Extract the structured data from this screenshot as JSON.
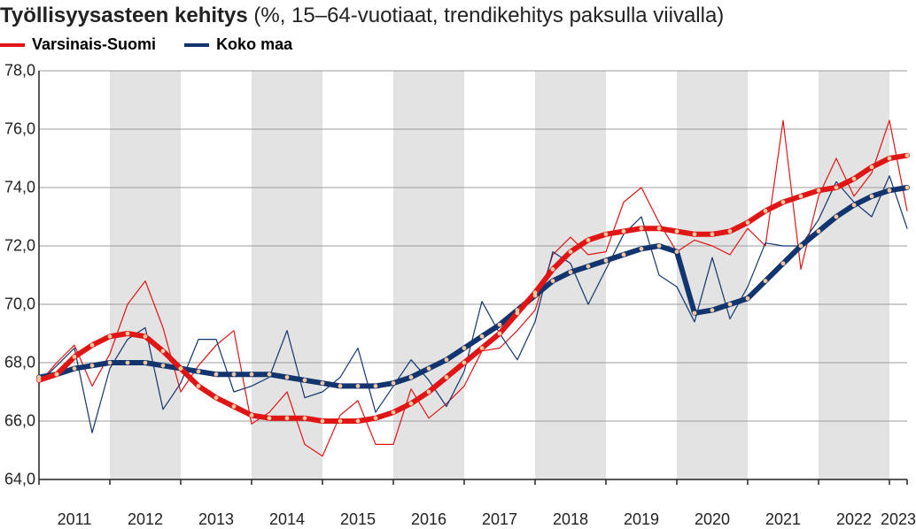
{
  "title": {
    "bold": "Työllisyysasteen kehitys",
    "rest": " (%, 15–64-vuotiaat, trendikehitys paksulla viivalla)",
    "fontsize_bold": 24,
    "fontsize_rest": 24,
    "color": "#222222"
  },
  "legend": {
    "items": [
      {
        "label": "Varsinais-Suomi",
        "color": "#e01515"
      },
      {
        "label": "Koko maa",
        "color": "#12356f"
      }
    ],
    "fontsize": 18
  },
  "chart": {
    "type": "line",
    "background_color": "#ffffff",
    "alt_band_color": "#e3e3e3",
    "grid_color": "#9b9b9b",
    "axis_color": "#222222",
    "ylim": [
      64.0,
      78.0
    ],
    "ytick_step": 2.0,
    "yticks": [
      "64,0",
      "66,0",
      "68,0",
      "70,0",
      "72,0",
      "74,0",
      "76,0",
      "78,0"
    ],
    "x_range_quarters": [
      0,
      49
    ],
    "x_year_labels": [
      "2011",
      "2012",
      "2013",
      "2014",
      "2015",
      "2016",
      "2017",
      "2018",
      "2019",
      "2020",
      "2021",
      "2022",
      "2023"
    ],
    "year_boundaries_q": [
      0,
      4,
      8,
      12,
      16,
      20,
      24,
      28,
      32,
      36,
      40,
      44,
      48,
      49
    ],
    "thin_line_width": 1.2,
    "thick_line_width": 6,
    "thick_dot_radius": 2.4,
    "thick_dot_color": "#f6c7a0",
    "series": {
      "vs_raw": {
        "color": "#e01515",
        "width": 1.2,
        "y": [
          67.3,
          68.0,
          68.6,
          67.2,
          68.3,
          70.0,
          70.8,
          69.2,
          67.0,
          67.9,
          68.6,
          69.1,
          65.9,
          66.3,
          67.0,
          65.2,
          64.8,
          66.2,
          66.7,
          65.2,
          65.2,
          67.1,
          66.1,
          66.6,
          67.2,
          68.4,
          68.5,
          69.1,
          69.8,
          71.7,
          72.3,
          71.7,
          71.8,
          73.5,
          74.0,
          72.8,
          71.8,
          72.2,
          72.0,
          71.7,
          72.6,
          72.0,
          76.3,
          71.2,
          73.7,
          75.0,
          73.7,
          74.5,
          76.3,
          73.2
        ]
      },
      "km_raw": {
        "color": "#12356f",
        "width": 1.2,
        "y": [
          67.3,
          67.9,
          68.5,
          65.6,
          67.8,
          68.8,
          69.2,
          66.4,
          67.3,
          68.8,
          68.8,
          67.0,
          67.2,
          67.5,
          69.1,
          66.8,
          67.0,
          67.5,
          68.5,
          66.3,
          67.2,
          68.1,
          67.4,
          66.5,
          67.7,
          70.1,
          69.0,
          68.1,
          69.4,
          71.8,
          71.4,
          70.0,
          71.2,
          72.4,
          73.0,
          71.0,
          70.6,
          69.4,
          71.6,
          69.5,
          70.6,
          72.1,
          72.0,
          72.0,
          72.9,
          74.2,
          73.5,
          73.0,
          74.4,
          72.6
        ]
      },
      "vs_trend": {
        "color": "#e01515",
        "width": 6,
        "dots": true,
        "y": [
          67.4,
          67.6,
          68.2,
          68.6,
          68.9,
          69.0,
          68.9,
          68.4,
          67.8,
          67.2,
          66.8,
          66.5,
          66.2,
          66.1,
          66.1,
          66.1,
          66.0,
          66.0,
          66.0,
          66.1,
          66.3,
          66.6,
          67.0,
          67.5,
          68.0,
          68.5,
          69.0,
          69.7,
          70.4,
          71.2,
          71.8,
          72.2,
          72.4,
          72.5,
          72.6,
          72.6,
          72.5,
          72.4,
          72.4,
          72.5,
          72.8,
          73.2,
          73.5,
          73.7,
          73.9,
          74.0,
          74.3,
          74.7,
          75.0,
          75.1
        ]
      },
      "km_trend": {
        "color": "#12356f",
        "width": 6,
        "dots": true,
        "y": [
          67.5,
          67.6,
          67.8,
          67.9,
          68.0,
          68.0,
          68.0,
          67.9,
          67.8,
          67.7,
          67.6,
          67.6,
          67.6,
          67.6,
          67.5,
          67.4,
          67.3,
          67.2,
          67.2,
          67.2,
          67.3,
          67.5,
          67.8,
          68.1,
          68.5,
          68.9,
          69.3,
          69.8,
          70.3,
          70.8,
          71.1,
          71.3,
          71.5,
          71.7,
          71.9,
          72.0,
          71.8,
          69.7,
          69.8,
          70.0,
          70.2,
          70.8,
          71.4,
          72.0,
          72.5,
          73.0,
          73.4,
          73.7,
          73.9,
          74.0
        ]
      }
    }
  }
}
